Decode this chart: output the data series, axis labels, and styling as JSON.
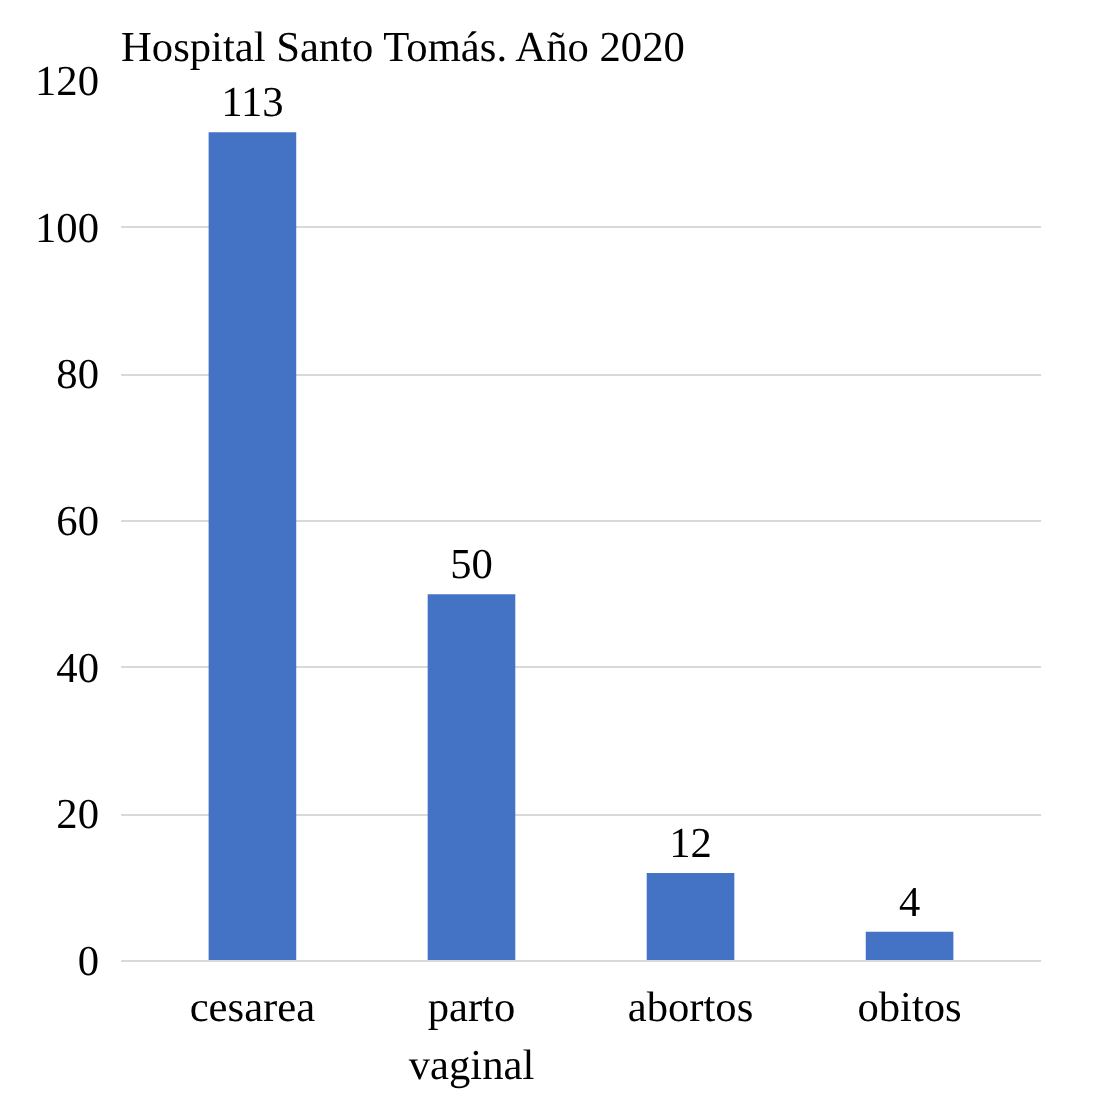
{
  "chart_data": {
    "type": "bar",
    "title": "Hospital Santo Tomás. Año 2020",
    "categories": [
      "cesarea",
      "parto vaginal",
      "abortos",
      "obitos"
    ],
    "values": [
      113,
      50,
      12,
      4
    ],
    "color": "#4472c4",
    "ylim": [
      0,
      120
    ],
    "yticks": [
      0,
      20,
      40,
      60,
      80,
      100,
      120
    ],
    "grid": "y",
    "data_labels": true
  }
}
